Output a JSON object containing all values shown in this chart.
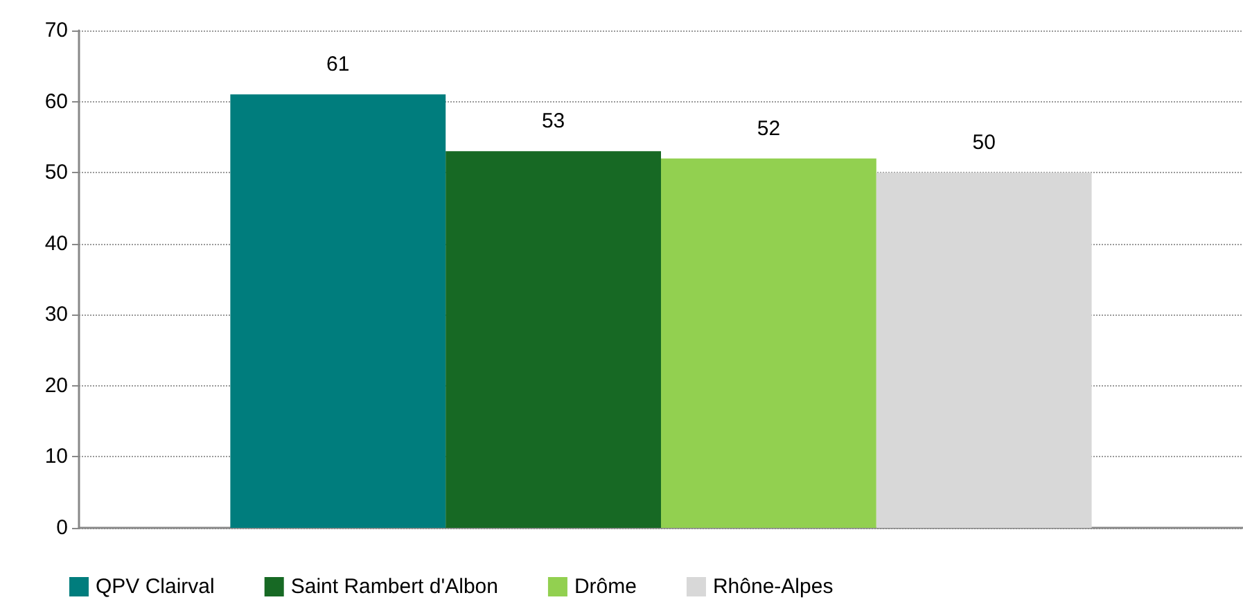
{
  "chart_data": {
    "type": "bar",
    "categories": [
      null
    ],
    "series": [
      {
        "name": "QPV Clairval",
        "color": "#007d7d",
        "values": [
          61
        ]
      },
      {
        "name": "Saint Rambert d'Albon",
        "color": "#176924",
        "values": [
          53
        ]
      },
      {
        "name": "Drôme",
        "color": "#92d050",
        "values": [
          52
        ]
      },
      {
        "name": "Rhône-Alpes",
        "color": "#d8d8d8",
        "values": [
          50
        ]
      }
    ],
    "ylim": [
      0,
      70
    ],
    "yticks": [
      0,
      10,
      20,
      30,
      40,
      50,
      60,
      70
    ],
    "grid": "y",
    "legend": "bottom",
    "data_labels": true
  }
}
